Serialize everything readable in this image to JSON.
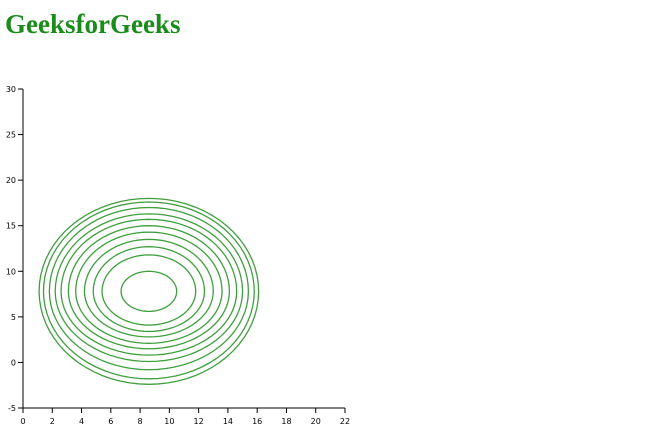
{
  "page": {
    "heading": "GeeksforGeeks"
  },
  "colors": {
    "heading": "#1a8c1a",
    "contour": "#3f9f3f",
    "axis": "#000000"
  },
  "chart_data": {
    "type": "contour",
    "title": "",
    "xlabel": "",
    "ylabel": "",
    "xlim": [
      0,
      22
    ],
    "ylim": [
      -5,
      30
    ],
    "x_ticks": [
      "0",
      "2",
      "4",
      "6",
      "8",
      "10",
      "12",
      "14",
      "16",
      "18",
      "20",
      "22"
    ],
    "y_ticks": [
      "-5",
      "0",
      "5",
      "10",
      "15",
      "20",
      "25",
      "30"
    ],
    "grid": false,
    "legend": "none",
    "center": {
      "x": 8.6,
      "y": 7.8
    },
    "contours": [
      {
        "level": 1,
        "rx": 1.9,
        "ry_top": 2.2,
        "ry_bottom": 2.2
      },
      {
        "level": 2,
        "rx": 3.2,
        "ry_top": 4.0,
        "ry_bottom": 3.7
      },
      {
        "level": 3,
        "rx": 3.8,
        "ry_top": 4.9,
        "ry_bottom": 4.4
      },
      {
        "level": 4,
        "rx": 4.4,
        "ry_top": 5.7,
        "ry_bottom": 5.0
      },
      {
        "level": 5,
        "rx": 5.0,
        "ry_top": 6.5,
        "ry_bottom": 5.7
      },
      {
        "level": 6,
        "rx": 5.5,
        "ry_top": 7.2,
        "ry_bottom": 6.3
      },
      {
        "level": 7,
        "rx": 6.0,
        "ry_top": 7.9,
        "ry_bottom": 7.0
      },
      {
        "level": 8,
        "rx": 6.4,
        "ry_top": 8.5,
        "ry_bottom": 7.7
      },
      {
        "level": 9,
        "rx": 6.8,
        "ry_top": 9.2,
        "ry_bottom": 8.6
      },
      {
        "level": 10,
        "rx": 7.2,
        "ry_top": 9.8,
        "ry_bottom": 9.6
      },
      {
        "level": 11,
        "rx": 7.5,
        "ry_top": 10.2,
        "ry_bottom": 10.2
      }
    ]
  }
}
